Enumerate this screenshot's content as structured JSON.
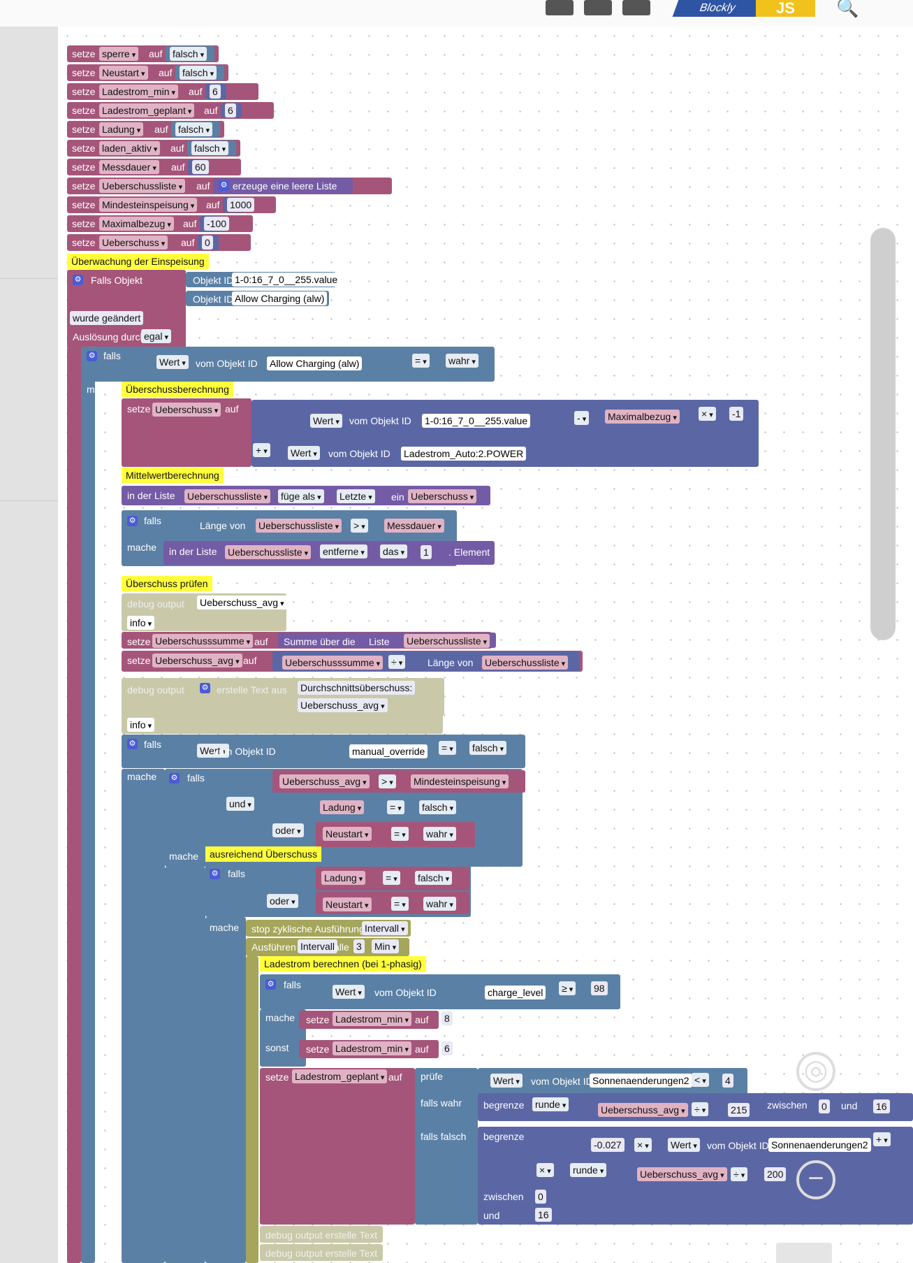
{
  "toolbar": {
    "icons": [
      "export-icon",
      "import-icon",
      "flag-icon"
    ],
    "logo_left": "Blockly",
    "logo_right": "JS",
    "search_icon": "search-icon"
  },
  "colors": {
    "variables": "#a5557a",
    "logic": "#5b80a5",
    "lists": "#745ba5",
    "math": "#5b67a5",
    "timer": "#a5a55b",
    "comment": "#ffff3c",
    "debug": "#c9c9a9"
  },
  "blocks": {
    "set_label": "setze",
    "to_label": "auf",
    "initial_sets": [
      {
        "var": "sperre",
        "value": "falsch"
      },
      {
        "var": "Neustart",
        "value": "falsch"
      },
      {
        "var": "Ladestrom_min",
        "value": "6"
      },
      {
        "var": "Ladestrom_geplant",
        "value": "6"
      },
      {
        "var": "Ladung",
        "value": "falsch"
      },
      {
        "var": "laden_aktiv",
        "value": "falsch"
      },
      {
        "var": "Messdauer",
        "value": "60"
      },
      {
        "var": "Ueberschussliste",
        "value": "erzeuge eine leere Liste"
      },
      {
        "var": "Mindesteinspeisung",
        "value": "1000"
      },
      {
        "var": "Maximalbezug",
        "value": "-100"
      },
      {
        "var": "Ueberschuss",
        "value": "0"
      }
    ],
    "comment_monitor": "Überwachung der Einspeisung",
    "trigger": {
      "label": "Falls Objekt",
      "obj_label": "Objekt ID",
      "obj1": "1-0:16_7_0__255.value",
      "obj2": "Allow Charging (alw)",
      "changed": "wurde geändert",
      "triggered_by": "Auslösung durch",
      "any": "egal"
    },
    "if_label": "falls",
    "do_label": "mache",
    "else_label": "sonst",
    "value_label": "Wert",
    "of_object": "vom Objekt ID",
    "of_object_short": "vom Objekt ID",
    "eq": "=",
    "gt": ">",
    "gte": "≥",
    "lt": "<",
    "plus": "+",
    "minus": "-",
    "times": "×",
    "div": "÷",
    "true_value": "wahr",
    "false_value": "falsch",
    "and_label": "und",
    "or_label": "oder",
    "comment_calc": "Überschussberechnung",
    "var_ueberschuss": "Ueberschuss",
    "maximalbezug": "Maximalbezug",
    "neg_one": "-1",
    "power_obj": "Ladestrom_Auto:2.POWER",
    "comment_avg": "Mittelwertberechnung",
    "in_list": "in der Liste",
    "list_var": "Ueberschussliste",
    "insert_as": "füge als",
    "last": "Letzte",
    "insert": "ein",
    "length_of": "Länge von",
    "messdauer": "Messdauer",
    "remove": "entferne",
    "the": "das",
    "one": "1",
    "element": ". Element",
    "comment_check": "Überschuss prüfen",
    "debug_output": "debug output",
    "ueberschuss_avg": "Ueberschuss_avg",
    "info": "info",
    "ueberschusssumme": "Ueberschusssumme",
    "sum_over": "Summe über die",
    "liste": "Liste",
    "create_text": "erstelle Text aus",
    "quote_text": "Durchschnittsüberschuss:",
    "manual_override": "manual_override",
    "mindesteinspeisung": "Mindesteinspeisung",
    "ladung": "Ladung",
    "neustart": "Neustart",
    "comment_enough": "ausreichend Überschuss",
    "stop_cyclic": "stop zyklische Ausführung",
    "interval": "Intervall",
    "execute": "Ausführen",
    "every": "alle",
    "three": "3",
    "min": "Min",
    "comment_current": "Ladestrom berechnen (bei 1-phasig)",
    "charge_level": "charge_level",
    "ninety_eight": "98",
    "ladestrom_min": "Ladestrom_min",
    "eight": "8",
    "six": "6",
    "ladestrom_geplant": "Ladestrom_geplant",
    "test_label": "prüfe",
    "if_true": "falls wahr",
    "if_false": "falls falsch",
    "sonnen": "Sonnenaenderungen2",
    "four": "4",
    "constrain": "begrenze",
    "round": "runde",
    "n215": "215",
    "between": "zwischen",
    "zero": "0",
    "sixteen": "16",
    "coef": "-0.027",
    "n200": "200",
    "debug_text": "debug output erstelle Text"
  }
}
